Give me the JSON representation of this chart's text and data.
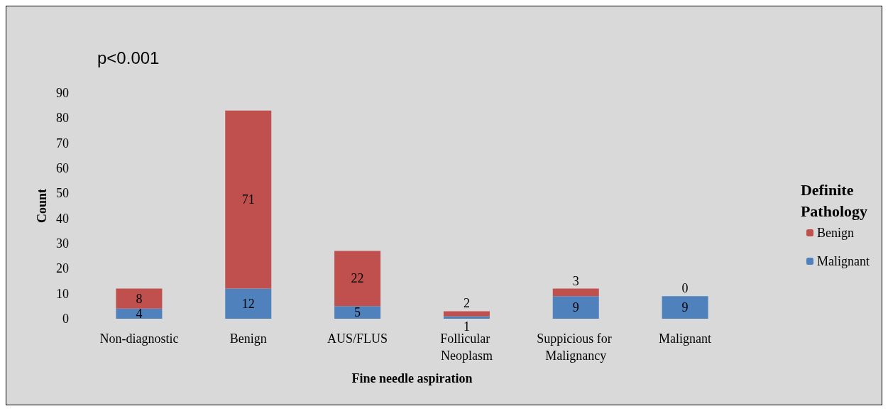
{
  "chart_data": {
    "type": "bar",
    "stacked": true,
    "xlabel": "Fine needle aspiration",
    "ylabel": "Count",
    "legend_title": "Definite Pathology",
    "legend": "right",
    "annotations": [
      "p<0.001"
    ],
    "categories": [
      "Non-diagnostic",
      "Benign",
      "AUS/FLUS",
      "Follicular Neoplasm",
      "Suppicious for Malignancy",
      "Malignant"
    ],
    "series": [
      {
        "name": "Malignant",
        "color": "#4f81bd",
        "values": [
          4,
          12,
          5,
          1,
          9,
          9
        ]
      },
      {
        "name": "Benign",
        "color": "#c0504d",
        "values": [
          8,
          71,
          22,
          2,
          3,
          0
        ]
      }
    ],
    "ylim": [
      0,
      90
    ],
    "yticks": [
      0,
      10,
      20,
      30,
      40,
      50,
      60,
      70,
      80,
      90
    ],
    "grid": false,
    "data_labels": true
  }
}
